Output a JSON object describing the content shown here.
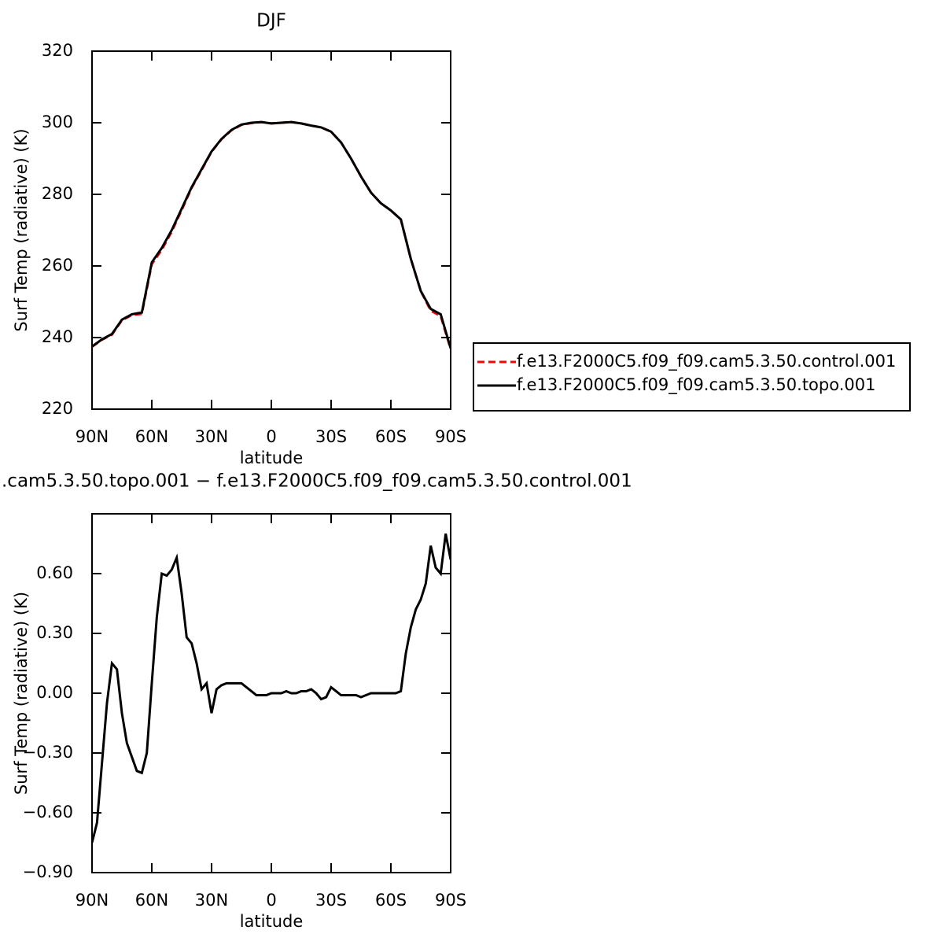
{
  "chart_data": [
    {
      "type": "line",
      "title": "DJF",
      "x_label": "latitude",
      "y_label": "Surf Temp (radiative) (K)",
      "x": [
        90,
        85,
        80,
        75,
        70,
        65,
        60,
        55,
        50,
        45,
        40,
        35,
        30,
        25,
        20,
        15,
        10,
        5,
        0,
        -5,
        -10,
        -15,
        -20,
        -25,
        -30,
        -35,
        -40,
        -45,
        -50,
        -55,
        -60,
        -65,
        -70,
        -75,
        -80,
        -85,
        -90
      ],
      "xlim": [
        90,
        -90
      ],
      "xticks": [
        {
          "value": 90,
          "label": "90N"
        },
        {
          "value": 60,
          "label": "60N"
        },
        {
          "value": 30,
          "label": "30N"
        },
        0,
        {
          "value": -30,
          "label": "30S"
        },
        {
          "value": -60,
          "label": "60S"
        },
        {
          "value": -90,
          "label": "90S"
        }
      ],
      "ylim": [
        220,
        320
      ],
      "yticks": [
        220,
        240,
        260,
        280,
        300,
        320
      ],
      "legend": "right",
      "series": [
        {
          "name": "f.e13.F2000C5.f09_f09.cam5.3.50.control.001",
          "color": "#ff0000",
          "dashed": true,
          "values": [
            237.4,
            239.4,
            240.8,
            244.8,
            246.3,
            246.6,
            260.5,
            264.5,
            269.6,
            275.6,
            281.8,
            286.8,
            291.9,
            295.4,
            297.9,
            299.4,
            299.9,
            300.2,
            299.8,
            300.0,
            300.2,
            299.8,
            299.2,
            298.7,
            297.5,
            294.5,
            290.0,
            285.0,
            280.5,
            277.5,
            275.5,
            273.0,
            262.0,
            253.0,
            247.5,
            246.0,
            236.8
          ]
        },
        {
          "name": "f.e13.F2000C5.f09_f09.cam5.3.50.topo.001",
          "color": "#000000",
          "dashed": false,
          "values": [
            237.5,
            239.5,
            241.0,
            245.0,
            246.5,
            247.0,
            261.0,
            265.0,
            270.0,
            276.0,
            282.0,
            287.0,
            292.0,
            295.5,
            298.0,
            299.5,
            300.0,
            300.2,
            299.8,
            300.0,
            300.2,
            299.8,
            299.2,
            298.7,
            297.5,
            294.5,
            290.0,
            285.0,
            280.5,
            277.5,
            275.5,
            273.0,
            262.0,
            253.0,
            248.0,
            246.5,
            237.0
          ]
        }
      ]
    },
    {
      "type": "line",
      "title": ".cam5.3.50.topo.001 − f.e13.F2000C5.f09_f09.cam5.3.50.control.001",
      "x_label": "latitude",
      "y_label": "Surf Temp (radiative) (K)",
      "x": [
        90,
        87.5,
        85,
        82.5,
        80,
        77.5,
        75,
        72.5,
        70,
        67.5,
        65,
        62.5,
        60,
        57.5,
        55,
        52.5,
        50,
        47.5,
        45,
        42.5,
        40,
        37.5,
        35,
        32.5,
        30,
        27.5,
        25,
        22.5,
        20,
        17.5,
        15,
        12.5,
        10,
        7.5,
        5,
        2.5,
        0,
        -2.5,
        -5,
        -7.5,
        -10,
        -12.5,
        -15,
        -17.5,
        -20,
        -22.5,
        -25,
        -27.5,
        -30,
        -32.5,
        -35,
        -37.5,
        -40,
        -42.5,
        -45,
        -47.5,
        -50,
        -52.5,
        -55,
        -57.5,
        -60,
        -62.5,
        -65,
        -67.5,
        -70,
        -72.5,
        -75,
        -77.5,
        -80,
        -82.5,
        -85,
        -87.5,
        -90
      ],
      "xlim": [
        90,
        -90
      ],
      "xticks": [
        {
          "value": 90,
          "label": "90N"
        },
        {
          "value": 60,
          "label": "60N"
        },
        {
          "value": 30,
          "label": "30N"
        },
        0,
        {
          "value": -30,
          "label": "30S"
        },
        {
          "value": -60,
          "label": "60S"
        },
        {
          "value": -90,
          "label": "90S"
        }
      ],
      "ylim": [
        -0.9,
        0.9
      ],
      "yticks": [
        {
          "value": -0.9,
          "label": "−0.90"
        },
        {
          "value": -0.6,
          "label": "−0.60"
        },
        {
          "value": -0.3,
          "label": "−0.30"
        },
        {
          "value": 0,
          "label": "0.00"
        },
        {
          "value": 0.3,
          "label": "0.30"
        },
        {
          "value": 0.6,
          "label": "0.60"
        }
      ],
      "series": [
        {
          "color": "#000000",
          "dashed": false,
          "values": [
            -0.75,
            -0.65,
            -0.35,
            -0.05,
            0.15,
            0.12,
            -0.1,
            -0.25,
            -0.32,
            -0.39,
            -0.4,
            -0.3,
            0.05,
            0.38,
            0.6,
            0.59,
            0.62,
            0.68,
            0.5,
            0.28,
            0.25,
            0.15,
            0.02,
            0.05,
            -0.1,
            0.02,
            0.04,
            0.05,
            0.05,
            0.05,
            0.05,
            0.03,
            0.01,
            -0.01,
            -0.01,
            -0.01,
            0,
            0,
            0,
            0.01,
            0,
            0,
            0.01,
            0.01,
            0.02,
            0,
            -0.03,
            -0.02,
            0.03,
            0.01,
            -0.01,
            -0.01,
            -0.01,
            -0.01,
            -0.02,
            -0.01,
            0,
            0,
            0,
            0,
            0,
            0,
            0.01,
            0.2,
            0.33,
            0.42,
            0.47,
            0.55,
            0.74,
            0.63,
            0.6,
            0.8,
            0.67
          ]
        }
      ]
    }
  ]
}
